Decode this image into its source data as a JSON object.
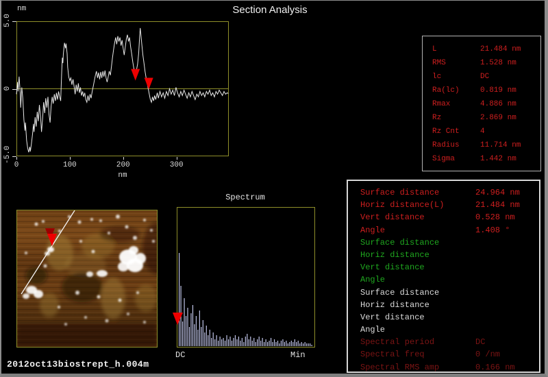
{
  "window": {
    "title": "Section Analysis",
    "filename": "2012oct13biostrept_h.004m"
  },
  "colors": {
    "background": "#000000",
    "box_border": "#8f8f2a",
    "zero_line": "#8f8f2a",
    "trace": "#e8e8e8",
    "marker_red": "#ee0000",
    "text_red": "#cf1f1f",
    "text_green": "#1fa81f",
    "text_white": "#dcdcdc",
    "text_dark_red": "#7c1414",
    "spectrum_bar": "#c0c4e8",
    "frame_gray": "#8c8c8c"
  },
  "profile_chart": {
    "y_unit_label": "nm",
    "x_unit_label": "nm"
  },
  "stats_panel": {
    "rows": [
      {
        "label": "L",
        "value": "21.484 nm"
      },
      {
        "label": "RMS",
        "value": "1.528 nm"
      },
      {
        "label": "lc",
        "value": "DC"
      },
      {
        "label": "Ra(lc)",
        "value": "0.819 nm"
      },
      {
        "label": "Rmax",
        "value": "4.886 nm"
      },
      {
        "label": "Rz",
        "value": "2.869 nm"
      },
      {
        "label": "Rz Cnt",
        "value": "4"
      },
      {
        "label": "Radius",
        "value": "11.714 nm"
      },
      {
        "label": "Sigma",
        "value": "1.442 nm"
      }
    ]
  },
  "measure_panel": {
    "rows": [
      {
        "label": "Surface distance",
        "value": "24.964 nm",
        "color": "red"
      },
      {
        "label": "Horiz distance(L)",
        "value": "21.484 nm",
        "color": "red"
      },
      {
        "label": "Vert distance",
        "value": "0.528 nm",
        "color": "red"
      },
      {
        "label": "Angle",
        "value": "1.408 °",
        "color": "red"
      },
      {
        "label": "Surface distance",
        "value": "",
        "color": "green"
      },
      {
        "label": "Horiz distance",
        "value": "",
        "color": "green"
      },
      {
        "label": "Vert distance",
        "value": "",
        "color": "green"
      },
      {
        "label": "Angle",
        "value": "",
        "color": "green"
      },
      {
        "label": "Surface distance",
        "value": "",
        "color": "white"
      },
      {
        "label": "Horiz distance",
        "value": "",
        "color": "white"
      },
      {
        "label": "Vert distance",
        "value": "",
        "color": "white"
      },
      {
        "label": "Angle",
        "value": "",
        "color": "white"
      },
      {
        "label": "Spectral period",
        "value": "DC",
        "color": "dark_red"
      },
      {
        "label": "Spectral freq",
        "value": "0 /nm",
        "color": "dark_red"
      },
      {
        "label": "Spectral RMS amp",
        "value": "0.166 nm",
        "color": "dark_red"
      }
    ]
  },
  "spectrum_labels": {
    "title": "Spectrum",
    "left": "DC",
    "right": "Min"
  },
  "chart_data": [
    {
      "type": "line",
      "title": "Section profile",
      "xlabel": "nm",
      "ylabel": "nm",
      "xlim": [
        0,
        398
      ],
      "ylim": [
        -5,
        5
      ],
      "xticks": [
        0,
        100,
        200,
        300
      ],
      "ytick_labels": [
        "5.0",
        "0",
        "-5.0"
      ],
      "yticks": [
        5,
        0,
        -5
      ],
      "grid": false,
      "zero_line": true,
      "markers": [
        {
          "x": 223,
          "y": 0.6
        },
        {
          "x": 248,
          "y": -0.05
        }
      ],
      "points": [
        [
          0,
          -0.4
        ],
        [
          2,
          0.5
        ],
        [
          3,
          -0.2
        ],
        [
          5,
          0.9
        ],
        [
          7,
          -0.3
        ],
        [
          8,
          -1.4
        ],
        [
          10,
          0.1
        ],
        [
          12,
          -0.7
        ],
        [
          14,
          -2.3
        ],
        [
          16,
          -3.1
        ],
        [
          17,
          -2.5
        ],
        [
          19,
          -3.8
        ],
        [
          21,
          -4.4
        ],
        [
          23,
          -4.7
        ],
        [
          25,
          -4.3
        ],
        [
          26,
          -4.65
        ],
        [
          28,
          -4.1
        ],
        [
          30,
          -3.4
        ],
        [
          32,
          -2.6
        ],
        [
          33,
          -3.2
        ],
        [
          35,
          -2.1
        ],
        [
          37,
          -2.8
        ],
        [
          39,
          -1.7
        ],
        [
          41,
          -2.4
        ],
        [
          43,
          -1.2
        ],
        [
          45,
          -2.0
        ],
        [
          47,
          -3.2
        ],
        [
          49,
          -2.2
        ],
        [
          51,
          -1.0
        ],
        [
          53,
          -1.8
        ],
        [
          55,
          -0.7
        ],
        [
          57,
          -1.4
        ],
        [
          59,
          -0.6
        ],
        [
          61,
          -1.9
        ],
        [
          63,
          -2.5
        ],
        [
          65,
          -1.3
        ],
        [
          67,
          -0.6
        ],
        [
          69,
          -1.1
        ],
        [
          71,
          -0.4
        ],
        [
          73,
          -0.9
        ],
        [
          75,
          -0.3
        ],
        [
          77,
          -0.8
        ],
        [
          79,
          -0.2
        ],
        [
          81,
          -0.6
        ],
        [
          83,
          -0.9
        ],
        [
          84,
          0.3
        ],
        [
          85,
          1.4
        ],
        [
          86,
          2.3
        ],
        [
          87,
          1.9
        ],
        [
          88,
          2.6
        ],
        [
          90,
          3.4
        ],
        [
          92,
          3.0
        ],
        [
          93,
          3.35
        ],
        [
          95,
          2.6
        ],
        [
          96,
          1.6
        ],
        [
          98,
          0.9
        ],
        [
          100,
          0.6
        ],
        [
          102,
          0.8
        ],
        [
          104,
          0.3
        ],
        [
          106,
          0.7
        ],
        [
          108,
          0.2
        ],
        [
          110,
          -0.4
        ],
        [
          112,
          0.3
        ],
        [
          114,
          -0.2
        ],
        [
          116,
          0.4
        ],
        [
          118,
          -0.3
        ],
        [
          120,
          0.1
        ],
        [
          122,
          -0.5
        ],
        [
          124,
          -0.2
        ],
        [
          126,
          -0.6
        ],
        [
          128,
          -0.3
        ],
        [
          130,
          -0.8
        ],
        [
          132,
          -1.0
        ],
        [
          134,
          -0.5
        ],
        [
          136,
          -0.9
        ],
        [
          138,
          -0.4
        ],
        [
          140,
          -0.7
        ],
        [
          142,
          -0.2
        ],
        [
          144,
          0.2
        ],
        [
          146,
          0.6
        ],
        [
          148,
          1.0
        ],
        [
          150,
          1.3
        ],
        [
          152,
          0.8
        ],
        [
          154,
          1.2
        ],
        [
          156,
          0.7
        ],
        [
          158,
          1.25
        ],
        [
          160,
          0.8
        ],
        [
          162,
          1.3
        ],
        [
          164,
          0.9
        ],
        [
          166,
          1.35
        ],
        [
          168,
          0.8
        ],
        [
          170,
          0.5
        ],
        [
          172,
          0.9
        ],
        [
          174,
          1.3
        ],
        [
          176,
          1.0
        ],
        [
          178,
          1.6
        ],
        [
          180,
          2.3
        ],
        [
          182,
          2.9
        ],
        [
          184,
          3.4
        ],
        [
          186,
          3.8
        ],
        [
          188,
          3.3
        ],
        [
          190,
          3.9
        ],
        [
          192,
          3.5
        ],
        [
          194,
          3.8
        ],
        [
          196,
          3.2
        ],
        [
          198,
          3.6
        ],
        [
          200,
          3.0
        ],
        [
          202,
          2.5
        ],
        [
          204,
          3.1
        ],
        [
          206,
          3.7
        ],
        [
          208,
          4.0
        ],
        [
          210,
          3.5
        ],
        [
          212,
          3.8
        ],
        [
          214,
          3.1
        ],
        [
          216,
          2.6
        ],
        [
          218,
          2.0
        ],
        [
          220,
          1.5
        ],
        [
          223,
          1.1
        ],
        [
          225,
          1.4
        ],
        [
          227,
          1.8
        ],
        [
          229,
          2.6
        ],
        [
          231,
          3.9
        ],
        [
          232,
          4.5
        ],
        [
          233,
          4.1
        ],
        [
          235,
          3.3
        ],
        [
          237,
          2.5
        ],
        [
          239,
          1.9
        ],
        [
          241,
          1.3
        ],
        [
          243,
          0.8
        ],
        [
          245,
          0.4
        ],
        [
          247,
          0.0
        ],
        [
          249,
          -0.4
        ],
        [
          251,
          -0.8
        ],
        [
          253,
          -1.0
        ],
        [
          255,
          -0.6
        ],
        [
          257,
          -0.9
        ],
        [
          259,
          -0.5
        ],
        [
          261,
          -0.8
        ],
        [
          264,
          -0.3
        ],
        [
          266,
          -0.7
        ],
        [
          269,
          -0.2
        ],
        [
          272,
          -0.6
        ],
        [
          275,
          -0.3
        ],
        [
          278,
          -0.7
        ],
        [
          281,
          -0.2
        ],
        [
          284,
          -0.5
        ],
        [
          287,
          0.0
        ],
        [
          290,
          -0.4
        ],
        [
          293,
          -0.1
        ],
        [
          296,
          -0.5
        ],
        [
          299,
          0.1
        ],
        [
          302,
          -0.3
        ],
        [
          305,
          -0.6
        ],
        [
          308,
          -0.2
        ],
        [
          311,
          -0.5
        ],
        [
          314,
          -0.1
        ],
        [
          317,
          -0.4
        ],
        [
          320,
          -0.7
        ],
        [
          323,
          -0.3
        ],
        [
          326,
          -0.6
        ],
        [
          329,
          -0.2
        ],
        [
          332,
          -0.5
        ],
        [
          335,
          -0.8
        ],
        [
          338,
          -0.4
        ],
        [
          341,
          -0.6
        ],
        [
          344,
          -0.2
        ],
        [
          347,
          -0.5
        ],
        [
          350,
          -0.3
        ],
        [
          353,
          -0.6
        ],
        [
          356,
          -0.2
        ],
        [
          359,
          -0.4
        ],
        [
          362,
          -0.1
        ],
        [
          365,
          -0.5
        ],
        [
          368,
          -0.3
        ],
        [
          371,
          -0.6
        ],
        [
          374,
          -0.2
        ],
        [
          377,
          -0.4
        ],
        [
          380,
          -0.1
        ],
        [
          383,
          -0.3
        ],
        [
          386,
          -0.5
        ],
        [
          389,
          -0.2
        ],
        [
          392,
          -0.4
        ],
        [
          395,
          -0.3
        ],
        [
          397,
          -0.35
        ]
      ]
    },
    {
      "type": "bar",
      "title": "Spectrum",
      "xlabel_left": "DC",
      "xlabel_right": "Min",
      "ylim": [
        0,
        1
      ],
      "marker_index": 0,
      "values": [
        0.68,
        0.44,
        0.18,
        0.35,
        0.22,
        0.28,
        0.14,
        0.24,
        0.3,
        0.16,
        0.22,
        0.12,
        0.26,
        0.14,
        0.19,
        0.1,
        0.15,
        0.08,
        0.12,
        0.06,
        0.1,
        0.05,
        0.08,
        0.04,
        0.07,
        0.05,
        0.06,
        0.04,
        0.08,
        0.05,
        0.07,
        0.04,
        0.06,
        0.08,
        0.05,
        0.07,
        0.04,
        0.06,
        0.03,
        0.07,
        0.09,
        0.05,
        0.07,
        0.04,
        0.06,
        0.03,
        0.05,
        0.07,
        0.04,
        0.06,
        0.03,
        0.05,
        0.03,
        0.04,
        0.06,
        0.03,
        0.05,
        0.03,
        0.04,
        0.02,
        0.04,
        0.05,
        0.03,
        0.04,
        0.02,
        0.03,
        0.04,
        0.03,
        0.05,
        0.03,
        0.04,
        0.02,
        0.03,
        0.02,
        0.03,
        0.02,
        0.02,
        0.02,
        0.01
      ]
    }
  ]
}
